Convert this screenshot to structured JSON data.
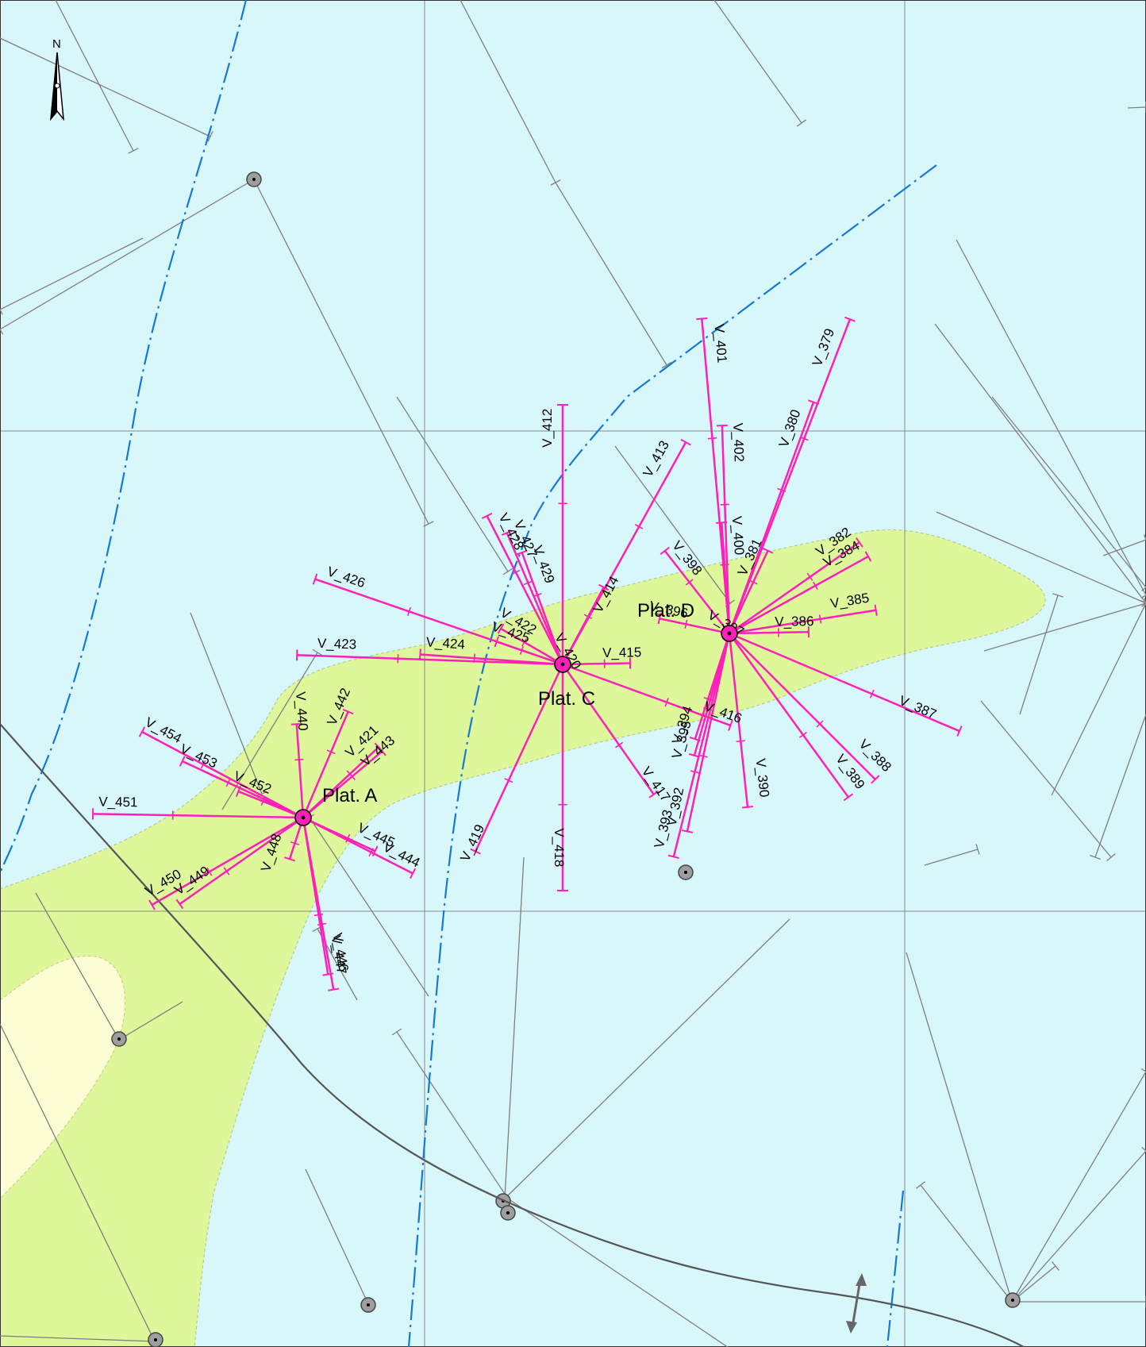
{
  "colors": {
    "water": "#d8f7fb",
    "land": "#ddf79a",
    "land_inner": "#fdfdd5",
    "grid": "#8a8a8a",
    "well_path": "#ff1fb9",
    "old_well": "#7f7f7f",
    "pipeline": "#1679d4",
    "coast": "#555555"
  },
  "map": {
    "north_arrow": {
      "label": "N",
      "icon": "north-arrow-icon"
    },
    "icons": {
      "platform": "platform-marker-icon",
      "existing_well": "existing-well-icon",
      "scale_toggle": "double-arrow-icon"
    },
    "platforms": [
      {
        "label": "Plat. A",
        "wells": [
          {
            "name": "V_440"
          },
          {
            "name": "V_442"
          },
          {
            "name": "V_421"
          },
          {
            "name": "V_443"
          },
          {
            "name": "V_445"
          },
          {
            "name": "V_444"
          },
          {
            "name": "V_446"
          },
          {
            "name": "V_447"
          },
          {
            "name": "V_448"
          },
          {
            "name": "V_449"
          },
          {
            "name": "V_450"
          },
          {
            "name": "V_451"
          },
          {
            "name": "V_452"
          },
          {
            "name": "V_453"
          },
          {
            "name": "V_454"
          }
        ]
      },
      {
        "label": "Plat. C",
        "wells": [
          {
            "name": "V_412"
          },
          {
            "name": "V_413"
          },
          {
            "name": "V_414"
          },
          {
            "name": "V_415"
          },
          {
            "name": "V_416"
          },
          {
            "name": "V_417"
          },
          {
            "name": "V_418"
          },
          {
            "name": "V_419"
          },
          {
            "name": "V_422"
          },
          {
            "name": "V_423"
          },
          {
            "name": "V_424"
          },
          {
            "name": "V_425"
          },
          {
            "name": "V_426"
          },
          {
            "name": "V_427"
          },
          {
            "name": "V_428"
          },
          {
            "name": "V_429"
          },
          {
            "name": "V_420"
          }
        ]
      },
      {
        "label": "Plat. D",
        "wells": [
          {
            "name": "V_401"
          },
          {
            "name": "V_379"
          },
          {
            "name": "V_402"
          },
          {
            "name": "V_380"
          },
          {
            "name": "V_400"
          },
          {
            "name": "V_382"
          },
          {
            "name": "V_384"
          },
          {
            "name": "V_381"
          },
          {
            "name": "V_398"
          },
          {
            "name": "V_385"
          },
          {
            "name": "V_386"
          },
          {
            "name": "V_387"
          },
          {
            "name": "V_388"
          },
          {
            "name": "V_389"
          },
          {
            "name": "V_390"
          },
          {
            "name": "V_392"
          },
          {
            "name": "V_393"
          },
          {
            "name": "V_394"
          },
          {
            "name": "V_395"
          },
          {
            "name": "V_396"
          },
          {
            "name": "V_397"
          }
        ]
      }
    ]
  }
}
